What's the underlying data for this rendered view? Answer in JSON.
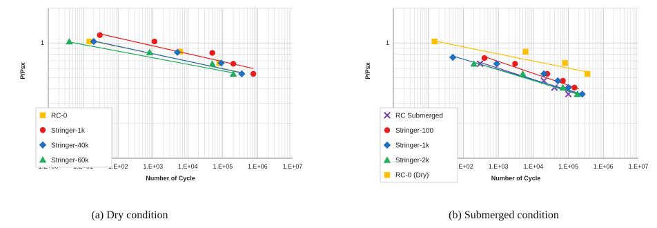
{
  "chart_data": [
    {
      "type": "scatter",
      "caption": "(a)  Dry condition",
      "xlabel": "Number of Cycle",
      "ylabel": "P/Psx",
      "xscale": "log",
      "yscale": "log",
      "xlim": [
        1,
        10000000
      ],
      "ylim": [
        0.1,
        2
      ],
      "x_ticks": [
        "1.E+00",
        "1.E+01",
        "1.E+02",
        "1.E+03",
        "1.E+04",
        "1.E+05",
        "1.E+06",
        "1.E+07"
      ],
      "y_ticks": [
        "0.1",
        "1"
      ],
      "grid": true,
      "legend": "bottom-left",
      "series": [
        {
          "name": "RC-0",
          "color": "#ffc000",
          "marker": "square",
          "points": [
            [
              15,
              1.03
            ],
            [
              6000,
              0.84
            ],
            [
              80000,
              0.67
            ]
          ],
          "trend": [
            [
              15,
              1.05
            ],
            [
              300000,
              0.56
            ]
          ]
        },
        {
          "name": "Stringer-1k",
          "color": "#e81c1c",
          "marker": "circle",
          "points": [
            [
              30,
              1.17
            ],
            [
              1100,
              1.03
            ],
            [
              50000,
              0.82
            ],
            [
              200000,
              0.66
            ],
            [
              750000,
              0.54
            ]
          ],
          "trend": [
            [
              30,
              1.2
            ],
            [
              750000,
              0.6
            ]
          ]
        },
        {
          "name": "Stringer-40k",
          "color": "#1f6fc0",
          "marker": "diamond",
          "points": [
            [
              20,
              1.03
            ],
            [
              5000,
              0.83
            ],
            [
              90000,
              0.67
            ],
            [
              350000,
              0.54
            ]
          ],
          "trend": [
            [
              20,
              1.04
            ],
            [
              350000,
              0.55
            ]
          ]
        },
        {
          "name": "Stringer-60k",
          "color": "#21ad5a",
          "marker": "triangle",
          "points": [
            [
              4,
              1.03
            ],
            [
              800,
              0.83
            ],
            [
              50000,
              0.66
            ],
            [
              200000,
              0.54
            ]
          ],
          "trend": [
            [
              4,
              1.02
            ],
            [
              200000,
              0.55
            ]
          ]
        }
      ]
    },
    {
      "type": "scatter",
      "caption": "(b) Submerged condition",
      "xlabel": "Number of Cycle",
      "ylabel": "P/Psx",
      "xscale": "log",
      "yscale": "log",
      "xlim": [
        1,
        10000000
      ],
      "ylim": [
        0.1,
        2
      ],
      "x_ticks": [
        "1.E+00",
        "1.E+01",
        "1.E+02",
        "1.E+03",
        "1.E+04",
        "1.E+05",
        "1.E+06",
        "1.E+07"
      ],
      "y_ticks": [
        "0.1",
        "1"
      ],
      "grid": true,
      "legend": "bottom-left",
      "series": [
        {
          "name": "RC Submerged",
          "color": "#7b3fa8",
          "marker": "x",
          "points": [
            [
              300,
              0.66
            ],
            [
              20000,
              0.47
            ],
            [
              40000,
              0.41
            ],
            [
              100000,
              0.36
            ]
          ],
          "trend": [
            [
              300,
              0.68
            ],
            [
              200000,
              0.36
            ]
          ]
        },
        {
          "name": "Stringer-100",
          "color": "#e81c1c",
          "marker": "circle",
          "points": [
            [
              400,
              0.74
            ],
            [
              3000,
              0.66
            ],
            [
              25000,
              0.54
            ],
            [
              70000,
              0.47
            ],
            [
              150000,
              0.41
            ]
          ],
          "trend": [
            [
              400,
              0.76
            ],
            [
              200000,
              0.4
            ]
          ]
        },
        {
          "name": "Stringer-1k",
          "color": "#1f6fc0",
          "marker": "diamond",
          "points": [
            [
              50,
              0.75
            ],
            [
              900,
              0.66
            ],
            [
              20000,
              0.54
            ],
            [
              50000,
              0.47
            ],
            [
              100000,
              0.41
            ],
            [
              250000,
              0.36
            ]
          ],
          "trend": [
            [
              50,
              0.77
            ],
            [
              250000,
              0.36
            ]
          ]
        },
        {
          "name": "Stringer-2k",
          "color": "#21ad5a",
          "marker": "triangle",
          "points": [
            [
              200,
              0.66
            ],
            [
              5000,
              0.54
            ],
            [
              70000,
              0.41
            ],
            [
              180000,
              0.36
            ]
          ],
          "trend": [
            [
              200,
              0.68
            ],
            [
              180000,
              0.36
            ]
          ]
        },
        {
          "name": "RC-0 (Dry)",
          "color": "#ffc000",
          "marker": "square",
          "points": [
            [
              15,
              1.03
            ],
            [
              6000,
              0.84
            ],
            [
              80000,
              0.67
            ],
            [
              350000,
              0.54
            ]
          ],
          "trend": [
            [
              15,
              1.04
            ],
            [
              350000,
              0.56
            ]
          ]
        }
      ]
    }
  ]
}
